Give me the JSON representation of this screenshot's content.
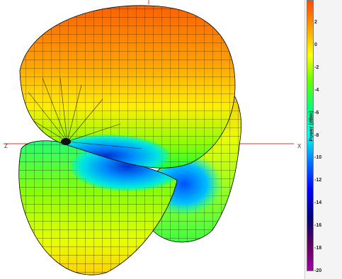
{
  "chart_data": {
    "type": "3d-surface",
    "axis_labels": {
      "left": "Z",
      "right": "X"
    },
    "colorbar": {
      "label": "Power (dBm)",
      "range": [
        -20,
        4
      ],
      "ticks": [
        "2",
        "0",
        "-2",
        "-4",
        "-6",
        "-8",
        "-10",
        "-12",
        "-14",
        "-16",
        "-18",
        "-20"
      ],
      "colors": [
        "#ff4a00",
        "#ffa000",
        "#ffff00",
        "#63ff00",
        "#00ff7f",
        "#00fff0",
        "#0070ff",
        "#0000ff",
        "#00007a",
        "#5a005a",
        "#a000a0"
      ]
    }
  }
}
